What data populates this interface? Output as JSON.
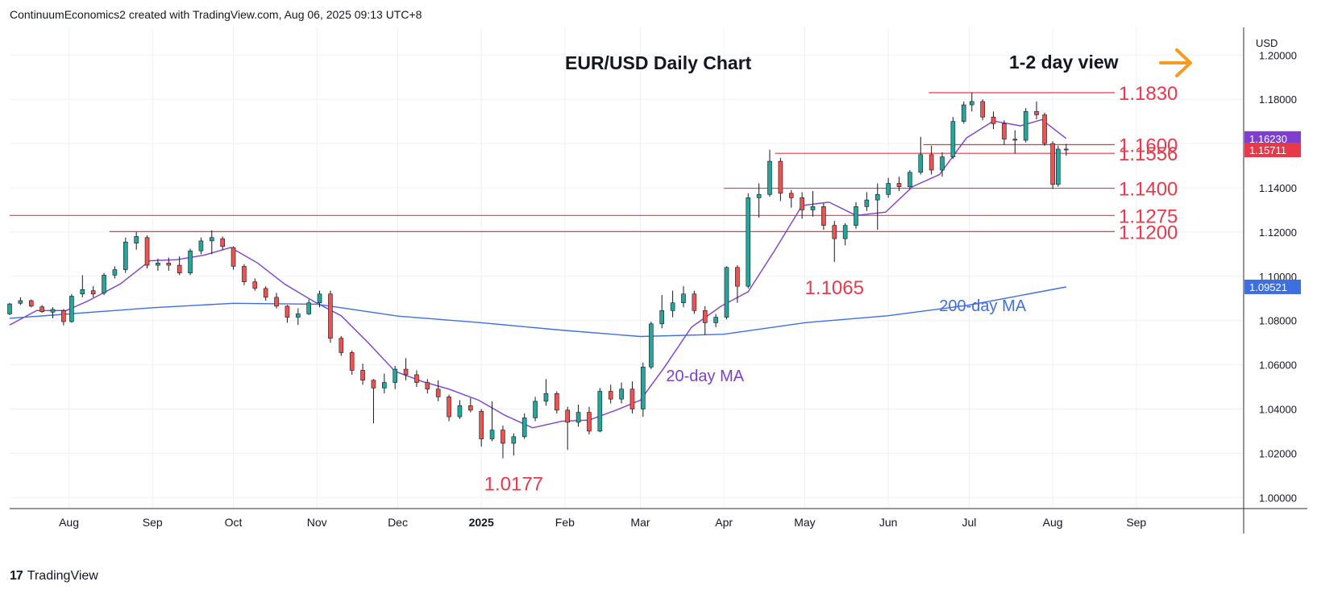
{
  "header": {
    "attribution": "ContinuumEconomics2 created with TradingView.com, Aug 06, 2025 09:13 UTC+8"
  },
  "footer": {
    "logo": "17",
    "brand": "TradingView"
  },
  "colors": {
    "up": "#26a69a",
    "down": "#ef5350",
    "level": "#e8394a",
    "ma20": "#7e3fd0",
    "ma200": "#3d6fe0",
    "arrow": "#f59a23",
    "grid": "#eef0f3",
    "current_price_bg": "#e8394a",
    "ma20_badge_bg": "#7e3fd0",
    "ma200_badge_bg": "#3d6fe0"
  },
  "chart_data": {
    "type": "candlestick",
    "title": "EUR/USD Daily Chart",
    "view_label": "1-2 day view",
    "view_icon": "arrow-right-icon",
    "currency": "USD",
    "ylim": [
      0.995,
      1.2125
    ],
    "y_ticks": [
      "1.20000",
      "1.18000",
      "1.16000",
      "1.14000",
      "1.12000",
      "1.10000",
      "1.08000",
      "1.06000",
      "1.04000",
      "1.02000",
      "1.00000"
    ],
    "x_ticks": [
      "Aug",
      "Sep",
      "Oct",
      "Nov",
      "Dec",
      "2025",
      "Feb",
      "Mar",
      "Apr",
      "May",
      "Jun",
      "Jul",
      "Aug",
      "Sep"
    ],
    "x_tick_dates": [
      "2024-08-01",
      "2024-09-01",
      "2024-10-01",
      "2024-11-01",
      "2024-12-01",
      "2025-01-01",
      "2025-02-01",
      "2025-03-01",
      "2025-04-01",
      "2025-05-01",
      "2025-06-01",
      "2025-07-01",
      "2025-08-01",
      "2025-09-01"
    ],
    "x_range": [
      "2024-07-10",
      "2025-09-22"
    ],
    "levels": [
      {
        "label": "1.1830",
        "value": 1.183,
        "from": "2025-06-16"
      },
      {
        "label": "1.1600",
        "value": 1.1595,
        "from": "2025-06-14"
      },
      {
        "label": "1.1556",
        "value": 1.1556,
        "from": "2025-04-20"
      },
      {
        "label": "1.1400",
        "value": 1.1398,
        "from": "2025-04-01"
      },
      {
        "label": "1.1275",
        "value": 1.1275,
        "from": "2024-07-10"
      },
      {
        "label": "1.1200",
        "value": 1.1202,
        "from": "2024-08-16"
      }
    ],
    "annotations": [
      {
        "label": "1.0177",
        "date": "2025-01-13",
        "value": 1.0177
      },
      {
        "label": "1.1065",
        "date": "2025-05-12",
        "value": 1.1065
      },
      {
        "label": "20-day MA",
        "date": "2025-03-25",
        "value": 1.0525
      },
      {
        "label": "200-day MA",
        "date": "2025-07-06",
        "value": 1.0842
      }
    ],
    "price_badges": [
      {
        "label": "1.16230",
        "value": 1.1623,
        "kind": "ma20"
      },
      {
        "label": "1.15711",
        "value": 1.1571,
        "kind": "current"
      },
      {
        "label": "1.09521",
        "value": 1.0952,
        "kind": "ma200"
      }
    ],
    "series": [
      {
        "name": "20-day MA",
        "kind": "line",
        "points": [
          [
            "2024-07-10",
            1.078
          ],
          [
            "2024-07-20",
            1.0845
          ],
          [
            "2024-07-31",
            1.0845
          ],
          [
            "2024-08-08",
            1.0888
          ],
          [
            "2024-08-20",
            1.0965
          ],
          [
            "2024-08-31",
            1.107
          ],
          [
            "2024-09-10",
            1.1075
          ],
          [
            "2024-09-20",
            1.1095
          ],
          [
            "2024-09-30",
            1.113
          ],
          [
            "2024-10-10",
            1.106
          ],
          [
            "2024-10-20",
            1.0965
          ],
          [
            "2024-10-31",
            1.0885
          ],
          [
            "2024-11-10",
            1.0822
          ],
          [
            "2024-11-20",
            1.07
          ],
          [
            "2024-11-30",
            1.057
          ],
          [
            "2024-12-10",
            1.0525
          ],
          [
            "2024-12-20",
            1.049
          ],
          [
            "2024-12-31",
            1.044
          ],
          [
            "2025-01-10",
            1.037
          ],
          [
            "2025-01-20",
            1.0315
          ],
          [
            "2025-01-31",
            1.0345
          ],
          [
            "2025-02-10",
            1.035
          ],
          [
            "2025-02-20",
            1.0395
          ],
          [
            "2025-03-01",
            1.044
          ],
          [
            "2025-03-10",
            1.059
          ],
          [
            "2025-03-20",
            1.077
          ],
          [
            "2025-03-31",
            1.0865
          ],
          [
            "2025-04-10",
            1.093
          ],
          [
            "2025-04-20",
            1.112
          ],
          [
            "2025-04-30",
            1.132
          ],
          [
            "2025-05-10",
            1.1335
          ],
          [
            "2025-05-20",
            1.1275
          ],
          [
            "2025-05-31",
            1.129
          ],
          [
            "2025-06-10",
            1.1405
          ],
          [
            "2025-06-20",
            1.146
          ],
          [
            "2025-06-30",
            1.1625
          ],
          [
            "2025-07-10",
            1.1702
          ],
          [
            "2025-07-20",
            1.168
          ],
          [
            "2025-07-28",
            1.1708
          ],
          [
            "2025-08-06",
            1.1623
          ]
        ]
      },
      {
        "name": "200-day MA",
        "kind": "line",
        "points": [
          [
            "2024-07-10",
            1.081
          ],
          [
            "2024-08-01",
            1.083
          ],
          [
            "2024-09-01",
            1.0858
          ],
          [
            "2024-10-01",
            1.0878
          ],
          [
            "2024-11-01",
            1.0874
          ],
          [
            "2024-12-01",
            1.082
          ],
          [
            "2025-01-01",
            1.079
          ],
          [
            "2025-02-01",
            1.0755
          ],
          [
            "2025-03-01",
            1.0728
          ],
          [
            "2025-04-01",
            1.0738
          ],
          [
            "2025-05-01",
            1.079
          ],
          [
            "2025-06-01",
            1.0822
          ],
          [
            "2025-07-01",
            1.087
          ],
          [
            "2025-08-06",
            1.0952
          ]
        ]
      }
    ],
    "candles": [
      [
        "2024-07-10",
        1.083,
        1.088,
        1.0825,
        1.0875
      ],
      [
        "2024-07-14",
        1.0878,
        1.0905,
        1.087,
        1.089
      ],
      [
        "2024-07-18",
        1.089,
        1.0895,
        1.086,
        1.0865
      ],
      [
        "2024-07-22",
        1.0862,
        1.087,
        1.0835,
        1.084
      ],
      [
        "2024-07-26",
        1.0838,
        1.086,
        1.081,
        1.085
      ],
      [
        "2024-07-30",
        1.0845,
        1.0852,
        1.0778,
        1.0795
      ],
      [
        "2024-08-02",
        1.0795,
        1.092,
        1.079,
        1.091
      ],
      [
        "2024-08-06",
        1.092,
        1.1005,
        1.0905,
        1.094
      ],
      [
        "2024-08-10",
        1.0935,
        1.0955,
        1.0905,
        1.092
      ],
      [
        "2024-08-14",
        1.0925,
        1.1015,
        1.0915,
        1.1005
      ],
      [
        "2024-08-18",
        1.1005,
        1.1045,
        1.099,
        1.103
      ],
      [
        "2024-08-22",
        1.103,
        1.1175,
        1.1015,
        1.1155
      ],
      [
        "2024-08-26",
        1.115,
        1.1201,
        1.112,
        1.118
      ],
      [
        "2024-08-30",
        1.1175,
        1.1185,
        1.1035,
        1.105
      ],
      [
        "2024-09-03",
        1.105,
        1.108,
        1.1025,
        1.106
      ],
      [
        "2024-09-07",
        1.106,
        1.1085,
        1.1025,
        1.105
      ],
      [
        "2024-09-11",
        1.105,
        1.109,
        1.1005,
        1.1015
      ],
      [
        "2024-09-15",
        1.1015,
        1.1125,
        1.1005,
        1.1115
      ],
      [
        "2024-09-19",
        1.1115,
        1.1175,
        1.11,
        1.116
      ],
      [
        "2024-09-23",
        1.116,
        1.1208,
        1.11,
        1.1175
      ],
      [
        "2024-09-27",
        1.117,
        1.118,
        1.112,
        1.1135
      ],
      [
        "2024-10-01",
        1.113,
        1.1135,
        1.103,
        1.1045
      ],
      [
        "2024-10-05",
        1.1045,
        1.1055,
        1.096,
        1.0975
      ],
      [
        "2024-10-09",
        1.0975,
        1.099,
        1.0935,
        1.0945
      ],
      [
        "2024-10-13",
        1.0945,
        1.0955,
        1.089,
        1.0905
      ],
      [
        "2024-10-17",
        1.0905,
        1.0925,
        1.0855,
        1.0865
      ],
      [
        "2024-10-21",
        1.0865,
        1.087,
        1.079,
        1.0815
      ],
      [
        "2024-10-25",
        1.0815,
        1.0855,
        1.078,
        1.083
      ],
      [
        "2024-10-29",
        1.083,
        1.0895,
        1.0825,
        1.088
      ],
      [
        "2024-11-02",
        1.088,
        1.0935,
        1.086,
        1.092
      ],
      [
        "2024-11-06",
        1.092,
        1.0935,
        1.07,
        1.072
      ],
      [
        "2024-11-10",
        1.072,
        1.073,
        1.064,
        1.0655
      ],
      [
        "2024-11-14",
        1.0655,
        1.0665,
        1.0555,
        1.0575
      ],
      [
        "2024-11-18",
        1.0575,
        1.0605,
        1.051,
        1.053
      ],
      [
        "2024-11-22",
        1.053,
        1.0535,
        1.0335,
        1.0495
      ],
      [
        "2024-11-26",
        1.0495,
        1.056,
        1.047,
        1.052
      ],
      [
        "2024-11-30",
        1.052,
        1.0595,
        1.049,
        1.058
      ],
      [
        "2024-12-04",
        1.058,
        1.063,
        1.053,
        1.0555
      ],
      [
        "2024-12-08",
        1.0555,
        1.0575,
        1.05,
        1.052
      ],
      [
        "2024-12-12",
        1.052,
        1.0535,
        1.047,
        1.049
      ],
      [
        "2024-12-16",
        1.049,
        1.053,
        1.0435,
        1.0455
      ],
      [
        "2024-12-20",
        1.0455,
        1.0465,
        1.0345,
        1.0365
      ],
      [
        "2024-12-24",
        1.0365,
        1.044,
        1.0355,
        1.0415
      ],
      [
        "2024-12-28",
        1.0415,
        1.045,
        1.0385,
        1.0395
      ],
      [
        "2025-01-01",
        1.039,
        1.04,
        1.023,
        1.0265
      ],
      [
        "2025-01-05",
        1.0265,
        1.0435,
        1.0255,
        1.0305
      ],
      [
        "2025-01-09",
        1.0305,
        1.0325,
        1.0177,
        1.0245
      ],
      [
        "2025-01-13",
        1.0245,
        1.029,
        1.019,
        1.0275
      ],
      [
        "2025-01-17",
        1.0275,
        1.038,
        1.0265,
        1.036
      ],
      [
        "2025-01-21",
        1.036,
        1.0455,
        1.0345,
        1.0435
      ],
      [
        "2025-01-25",
        1.0435,
        1.0535,
        1.0415,
        1.047
      ],
      [
        "2025-01-29",
        1.047,
        1.048,
        1.038,
        1.0395
      ],
      [
        "2025-02-02",
        1.0395,
        1.041,
        1.0215,
        1.034
      ],
      [
        "2025-02-06",
        1.034,
        1.042,
        1.032,
        1.0385
      ],
      [
        "2025-02-10",
        1.0385,
        1.041,
        1.0285,
        1.03
      ],
      [
        "2025-02-14",
        1.03,
        1.0495,
        1.0295,
        1.048
      ],
      [
        "2025-02-18",
        1.048,
        1.051,
        1.0425,
        1.0445
      ],
      [
        "2025-02-22",
        1.0445,
        1.052,
        1.0425,
        1.049
      ],
      [
        "2025-02-26",
        1.049,
        1.0525,
        1.038,
        1.04
      ],
      [
        "2025-03-02",
        1.04,
        1.061,
        1.0365,
        1.059
      ],
      [
        "2025-03-05",
        1.059,
        1.0795,
        1.058,
        1.0785
      ],
      [
        "2025-03-09",
        1.0785,
        1.0915,
        1.0765,
        1.0845
      ],
      [
        "2025-03-13",
        1.0845,
        1.0935,
        1.0815,
        1.088
      ],
      [
        "2025-03-17",
        1.088,
        1.0955,
        1.086,
        1.092
      ],
      [
        "2025-03-21",
        1.092,
        1.0935,
        1.083,
        1.0845
      ],
      [
        "2025-03-25",
        1.0845,
        1.0865,
        1.0735,
        1.079
      ],
      [
        "2025-03-29",
        1.079,
        1.083,
        1.077,
        1.0815
      ],
      [
        "2025-04-02",
        1.0815,
        1.1045,
        1.0805,
        1.104
      ],
      [
        "2025-04-06",
        1.104,
        1.105,
        1.088,
        1.0955
      ],
      [
        "2025-04-10",
        1.0955,
        1.1375,
        1.0945,
        1.1355
      ],
      [
        "2025-04-14",
        1.1355,
        1.142,
        1.1265,
        1.137
      ],
      [
        "2025-04-18",
        1.137,
        1.1572,
        1.136,
        1.152
      ],
      [
        "2025-04-22",
        1.152,
        1.1535,
        1.134,
        1.1375
      ],
      [
        "2025-04-26",
        1.1375,
        1.139,
        1.131,
        1.1355
      ],
      [
        "2025-04-30",
        1.1355,
        1.138,
        1.126,
        1.13
      ],
      [
        "2025-05-04",
        1.13,
        1.1385,
        1.127,
        1.1315
      ],
      [
        "2025-05-08",
        1.1315,
        1.133,
        1.121,
        1.123
      ],
      [
        "2025-05-12",
        1.123,
        1.125,
        1.1065,
        1.117
      ],
      [
        "2025-05-16",
        1.117,
        1.124,
        1.114,
        1.123
      ],
      [
        "2025-05-20",
        1.123,
        1.1335,
        1.1215,
        1.1315
      ],
      [
        "2025-05-24",
        1.1315,
        1.138,
        1.1295,
        1.1345
      ],
      [
        "2025-05-28",
        1.1345,
        1.142,
        1.121,
        1.137
      ],
      [
        "2025-06-01",
        1.137,
        1.1445,
        1.1355,
        1.142
      ],
      [
        "2025-06-05",
        1.142,
        1.145,
        1.1385,
        1.1405
      ],
      [
        "2025-06-09",
        1.1405,
        1.148,
        1.1395,
        1.147
      ],
      [
        "2025-06-13",
        1.147,
        1.163,
        1.146,
        1.155
      ],
      [
        "2025-06-17",
        1.155,
        1.159,
        1.146,
        1.148
      ],
      [
        "2025-06-21",
        1.148,
        1.156,
        1.145,
        1.154
      ],
      [
        "2025-06-25",
        1.154,
        1.172,
        1.153,
        1.17
      ],
      [
        "2025-06-29",
        1.17,
        1.179,
        1.169,
        1.1775
      ],
      [
        "2025-07-02",
        1.1775,
        1.183,
        1.1745,
        1.179
      ],
      [
        "2025-07-06",
        1.179,
        1.18,
        1.1705,
        1.172
      ],
      [
        "2025-07-10",
        1.172,
        1.1745,
        1.1665,
        1.169
      ],
      [
        "2025-07-14",
        1.169,
        1.1705,
        1.1595,
        1.162
      ],
      [
        "2025-07-18",
        1.162,
        1.166,
        1.1555,
        1.1615
      ],
      [
        "2025-07-22",
        1.1615,
        1.176,
        1.1605,
        1.1745
      ],
      [
        "2025-07-26",
        1.1745,
        1.179,
        1.171,
        1.173
      ],
      [
        "2025-07-29",
        1.173,
        1.174,
        1.159,
        1.16
      ],
      [
        "2025-08-01",
        1.16,
        1.161,
        1.1395,
        1.1415
      ],
      [
        "2025-08-03",
        1.1415,
        1.159,
        1.1405,
        1.1575
      ],
      [
        "2025-08-06",
        1.1575,
        1.1598,
        1.1545,
        1.1571
      ]
    ]
  }
}
